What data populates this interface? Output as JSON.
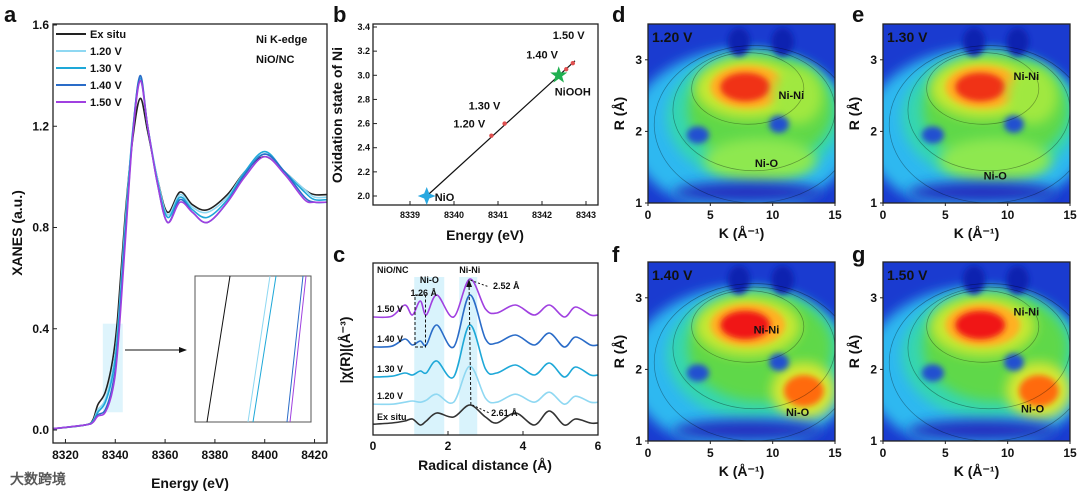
{
  "panel_letters": [
    "a",
    "b",
    "c",
    "d",
    "e",
    "f",
    "g"
  ],
  "watermark": "大数跨境",
  "chart_data": [
    {
      "id": "a",
      "type": "line",
      "xlabel": "Energy (eV)",
      "ylabel": "XANES (a.u.)",
      "xlim": [
        8315,
        8425
      ],
      "ylim": [
        -0.03,
        1.6
      ],
      "xticks": [
        "8320",
        "8340",
        "8360",
        "8380",
        "8400",
        "8420"
      ],
      "xtick_values": [
        8320,
        8340,
        8360,
        8380,
        8400,
        8420
      ],
      "yticks": [
        "0.0",
        "0.4",
        "0.8",
        "1.2",
        "1.6"
      ],
      "ytick_values": [
        0,
        0.4,
        0.8,
        1.2,
        1.6
      ],
      "annotations": [
        "Ni K-edge",
        "NiO/NC"
      ],
      "legend_position": "top-left",
      "series": [
        {
          "name": "Ex situ",
          "color": "#222222",
          "x": [
            8315,
            8328,
            8331,
            8333,
            8336,
            8339,
            8341,
            8344,
            8347,
            8350,
            8353,
            8357,
            8361,
            8366,
            8371,
            8377,
            8385,
            8392,
            8400,
            8408,
            8416,
            8420,
            8425
          ],
          "y": [
            0.005,
            0.02,
            0.04,
            0.1,
            0.15,
            0.28,
            0.45,
            0.85,
            1.15,
            1.31,
            1.18,
            0.99,
            0.86,
            0.94,
            0.89,
            0.87,
            0.93,
            1.02,
            1.08,
            1.02,
            0.95,
            0.93,
            0.93
          ]
        },
        {
          "name": "1.20 V",
          "color": "#8fd8f2",
          "x": [
            8315,
            8328,
            8331,
            8333,
            8336,
            8339,
            8341,
            8344,
            8347,
            8350,
            8353,
            8357,
            8361,
            8366,
            8371,
            8377,
            8385,
            8392,
            8400,
            8408,
            8416,
            8420,
            8425
          ],
          "y": [
            0.005,
            0.02,
            0.035,
            0.08,
            0.12,
            0.24,
            0.4,
            0.82,
            1.18,
            1.38,
            1.2,
            0.99,
            0.85,
            0.93,
            0.88,
            0.86,
            0.92,
            1.02,
            1.09,
            1.02,
            0.95,
            0.92,
            0.92
          ]
        },
        {
          "name": "1.30 V",
          "color": "#1ea8d8",
          "x": [
            8315,
            8328,
            8331,
            8333,
            8336,
            8339,
            8341,
            8344,
            8347,
            8350,
            8353,
            8357,
            8361,
            8366,
            8371,
            8377,
            8385,
            8392,
            8400,
            8408,
            8416,
            8420,
            8425
          ],
          "y": [
            0.005,
            0.02,
            0.035,
            0.07,
            0.11,
            0.22,
            0.38,
            0.8,
            1.18,
            1.39,
            1.2,
            0.98,
            0.84,
            0.92,
            0.87,
            0.84,
            0.91,
            1.02,
            1.1,
            1.02,
            0.94,
            0.91,
            0.91
          ]
        },
        {
          "name": "1.40 V",
          "color": "#2a6cc8",
          "x": [
            8315,
            8328,
            8331,
            8333,
            8336,
            8339,
            8341,
            8344,
            8347,
            8350,
            8353,
            8357,
            8361,
            8366,
            8371,
            8377,
            8385,
            8392,
            8400,
            8408,
            8416,
            8420,
            8425
          ],
          "y": [
            0.005,
            0.02,
            0.03,
            0.06,
            0.08,
            0.18,
            0.34,
            0.76,
            1.17,
            1.4,
            1.2,
            0.97,
            0.82,
            0.91,
            0.86,
            0.82,
            0.9,
            1.01,
            1.09,
            1.02,
            0.92,
            0.9,
            0.9
          ]
        },
        {
          "name": "1.50 V",
          "color": "#a040e0",
          "x": [
            8315,
            8328,
            8331,
            8333,
            8336,
            8339,
            8341,
            8344,
            8347,
            8350,
            8353,
            8357,
            8361,
            8366,
            8371,
            8377,
            8385,
            8392,
            8400,
            8408,
            8416,
            8420,
            8425
          ],
          "y": [
            0.005,
            0.02,
            0.03,
            0.055,
            0.07,
            0.16,
            0.32,
            0.74,
            1.16,
            1.38,
            1.2,
            0.97,
            0.82,
            0.9,
            0.86,
            0.82,
            0.9,
            1.0,
            1.08,
            1.01,
            0.91,
            0.9,
            0.9
          ]
        }
      ]
    },
    {
      "id": "b",
      "type": "scatter",
      "xlabel": "Energy (eV)",
      "ylabel": "Oxidation state of Ni",
      "xlim": [
        8338.15,
        8343.27
      ],
      "ylim": [
        1.9,
        3.4
      ],
      "xticks": [
        "8339",
        "8340",
        "8341",
        "8342",
        "8343"
      ],
      "xtick_values": [
        8339,
        8340,
        8341,
        8342,
        8343
      ],
      "yticks": [
        "2.0",
        "2.2",
        "2.4",
        "2.6",
        "2.8",
        "3.0",
        "3.2",
        "3.4"
      ],
      "ytick_values": [
        2.0,
        2.2,
        2.4,
        2.6,
        2.8,
        3.0,
        3.2,
        3.4
      ],
      "fit_line": {
        "x": [
          8339.38,
          8342.75
        ],
        "y": [
          2.0,
          3.12
        ]
      },
      "references": [
        {
          "name": "NiO",
          "x": 8339.38,
          "y": 2.0,
          "color": "#29a8e0"
        },
        {
          "name": "NiOOH",
          "x": 8342.38,
          "y": 3.0,
          "color": "#20b050"
        }
      ],
      "points": [
        {
          "name": "1.20 V",
          "x": 8340.85,
          "y": 2.5
        },
        {
          "name": "1.30 V",
          "x": 8341.15,
          "y": 2.6
        },
        {
          "name": "1.40 V",
          "x": 8342.55,
          "y": 3.05
        },
        {
          "name": "1.50 V",
          "x": 8342.7,
          "y": 3.1
        }
      ],
      "point_color": "#e05050"
    },
    {
      "id": "c",
      "type": "line",
      "xlabel": "Radical distance (Å)",
      "ylabel": "|χ(R)|(Å⁻³)",
      "xlim": [
        0,
        6
      ],
      "ylim": [
        -0.25,
        4.05
      ],
      "xticks": [
        "0",
        "2",
        "4",
        "6"
      ],
      "xtick_values": [
        0,
        2,
        4,
        6
      ],
      "annotations": {
        "sample": "NiO/NC",
        "ni_o": "Ni-O",
        "ni_ni": "Ni-Ni",
        "d_126": "1.26 Å",
        "d_252": "2.52 Å",
        "d_261": "2.61 Å"
      },
      "r": [
        0,
        0.5,
        0.85,
        1.05,
        1.26,
        1.42,
        1.7,
        2.15,
        2.58,
        3.0,
        3.3,
        3.8,
        4.3,
        4.7,
        5.1,
        5.4,
        5.8,
        6
      ],
      "series": [
        {
          "name": "Ex situ",
          "color": "#333333",
          "offset": 0,
          "y": [
            0.02,
            0.05,
            0.1,
            0.15,
            0.0,
            0.1,
            0.3,
            0.2,
            0.5,
            0.2,
            0.05,
            0.3,
            0.0,
            0.35,
            0.0,
            0.15,
            0.05,
            0.05
          ]
        },
        {
          "name": "1.20 V",
          "color": "#8fd8f2",
          "offset": 0.52,
          "y": [
            0,
            0,
            0.05,
            0.08,
            0.05,
            0.1,
            0.25,
            0.05,
            0.95,
            0.15,
            0.05,
            0.25,
            0.05,
            0.3,
            0.0,
            0.2,
            0.05,
            0.05
          ]
        },
        {
          "name": "1.30 V",
          "color": "#1ea8d8",
          "offset": 1.2,
          "y": [
            0,
            0.02,
            0.1,
            0.05,
            0.15,
            0.1,
            0.4,
            0.0,
            1.3,
            0.2,
            0.1,
            0.3,
            0.05,
            0.35,
            0.0,
            0.25,
            0.05,
            0.05
          ]
        },
        {
          "name": "1.40 V",
          "color": "#2a6cc8",
          "offset": 1.95,
          "y": [
            0,
            0.02,
            0.2,
            0.05,
            0.15,
            0.05,
            0.55,
            0.0,
            1.3,
            0.2,
            0.1,
            0.3,
            0.05,
            0.35,
            0.0,
            0.25,
            0.05,
            0.05
          ]
        },
        {
          "name": "1.50 V",
          "color": "#a040e0",
          "offset": 2.7,
          "y": [
            0,
            0.02,
            0.3,
            0.05,
            0.4,
            0.05,
            0.55,
            0.0,
            0.95,
            0.2,
            0.1,
            0.3,
            0.05,
            0.3,
            0.0,
            0.25,
            0.05,
            0.05
          ]
        }
      ]
    },
    {
      "id": "d",
      "type": "heatmap",
      "title": "1.20 V",
      "xlabel": "K (Å⁻¹)",
      "ylabel": "R (Å)",
      "xlim": [
        0,
        15
      ],
      "ylim": [
        1,
        3.5
      ],
      "xticks": [
        "0",
        "5",
        "10",
        "15"
      ],
      "yticks": [
        "1",
        "2",
        "3"
      ],
      "labels": [
        "Ni-Ni",
        "Ni-O"
      ]
    },
    {
      "id": "e",
      "type": "heatmap",
      "title": "1.30 V",
      "xlabel": "K (Å⁻¹)",
      "ylabel": "R (Å)",
      "xlim": [
        0,
        15
      ],
      "ylim": [
        1,
        3.5
      ],
      "xticks": [
        "0",
        "5",
        "10",
        "15"
      ],
      "yticks": [
        "1",
        "2",
        "3"
      ],
      "labels": [
        "Ni-Ni",
        "Ni-O"
      ]
    },
    {
      "id": "f",
      "type": "heatmap",
      "title": "1.40 V",
      "xlabel": "K (Å⁻¹)",
      "ylabel": "R (Å)",
      "xlim": [
        0,
        15
      ],
      "ylim": [
        1,
        3.5
      ],
      "xticks": [
        "0",
        "5",
        "10",
        "15"
      ],
      "yticks": [
        "1",
        "2",
        "3"
      ],
      "labels": [
        "Ni-Ni",
        "Ni-O"
      ]
    },
    {
      "id": "g",
      "type": "heatmap",
      "title": "1.50 V",
      "xlabel": "K (Å⁻¹)",
      "ylabel": "R (Å)",
      "xlim": [
        0,
        15
      ],
      "ylim": [
        1,
        3.5
      ],
      "xticks": [
        "0",
        "5",
        "10",
        "15"
      ],
      "yticks": [
        "1",
        "2",
        "3"
      ],
      "labels": [
        "Ni-Ni",
        "Ni-O"
      ]
    }
  ]
}
